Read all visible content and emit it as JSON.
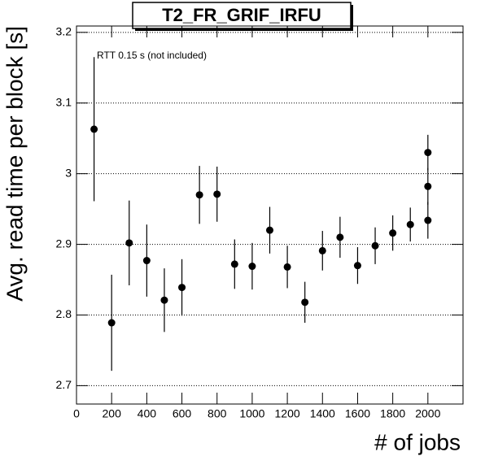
{
  "chart_data": {
    "type": "scatter",
    "title": "T2_FR_GRIF_IRFU",
    "annotation": "RTT 0.15 s (not included)",
    "xlabel": "# of jobs",
    "ylabel": "Avg. read time per block [s]",
    "xlim": [
      0,
      2200
    ],
    "ylim": [
      2.674,
      3.209
    ],
    "xticks": [
      0,
      200,
      400,
      600,
      800,
      1000,
      1200,
      1400,
      1600,
      1800,
      2000
    ],
    "yticks": [
      2.7,
      2.8,
      2.9,
      3,
      3.1,
      3.2
    ],
    "grid": true,
    "color": "#000000",
    "x": [
      100,
      200,
      300,
      400,
      500,
      600,
      700,
      800,
      900,
      1000,
      1100,
      1200,
      1300,
      1400,
      1500,
      1600,
      1700,
      1800,
      1900,
      2000,
      2000,
      2000
    ],
    "values": [
      3.063,
      2.789,
      2.902,
      2.877,
      2.821,
      2.839,
      2.97,
      2.971,
      2.872,
      2.869,
      2.92,
      2.868,
      2.818,
      2.891,
      2.91,
      2.87,
      2.898,
      2.916,
      2.928,
      3.03,
      2.982,
      2.934
    ],
    "errors": [
      0.102,
      0.068,
      0.06,
      0.051,
      0.045,
      0.04,
      0.041,
      0.039,
      0.035,
      0.033,
      0.033,
      0.03,
      0.029,
      0.028,
      0.029,
      0.026,
      0.026,
      0.025,
      0.024,
      0.025,
      0.026,
      0.026
    ]
  }
}
